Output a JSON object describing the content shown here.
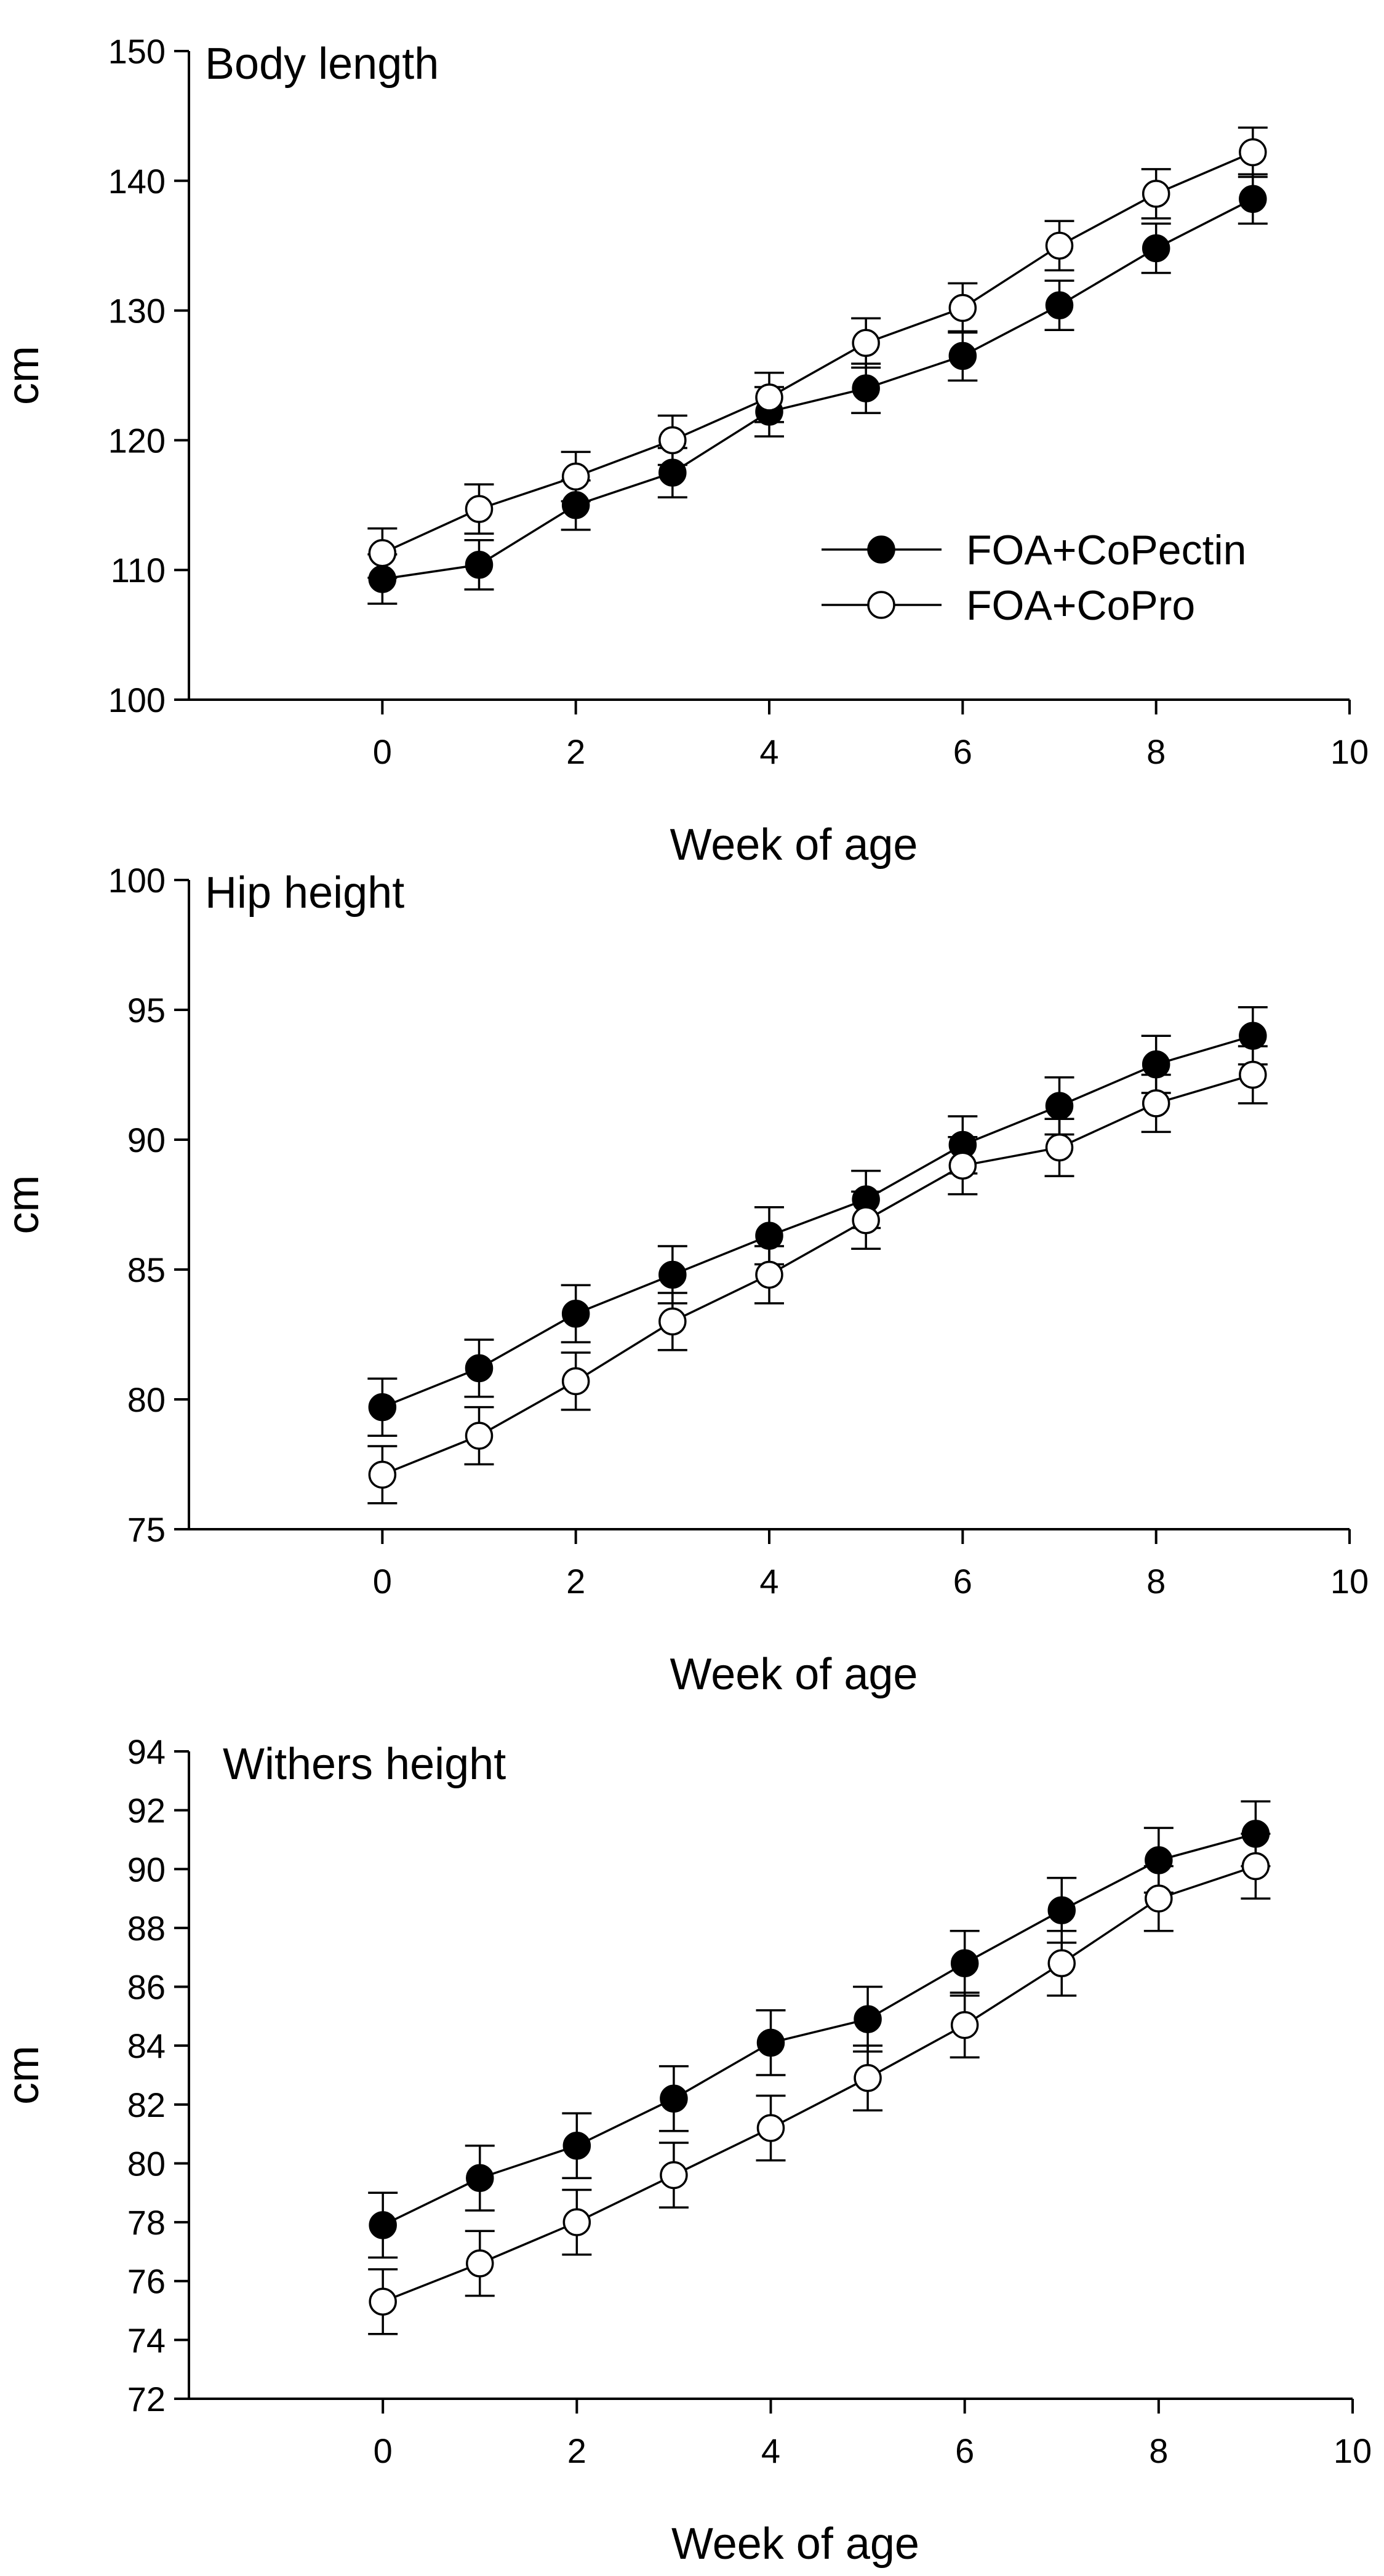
{
  "legend": {
    "items": [
      {
        "label": "FOA+CoPectin",
        "marker": "filled-circle",
        "color": "#000000"
      },
      {
        "label": "FOA+CoPro",
        "marker": "open-circle",
        "color": "#000000"
      }
    ],
    "placement": "in first panel, lower-right"
  },
  "chart_data": [
    {
      "type": "line",
      "title": "Body length",
      "xlabel": "Week of age",
      "ylabel": "cm",
      "xlim": [
        -2,
        10
      ],
      "ylim": [
        100,
        150
      ],
      "xticks": [
        0,
        2,
        4,
        6,
        8,
        10
      ],
      "yticks": [
        100,
        110,
        120,
        130,
        140,
        150
      ],
      "x": [
        0,
        1,
        2,
        3,
        4,
        5,
        6,
        7,
        8,
        9
      ],
      "grid": false,
      "series": [
        {
          "name": "FOA+CoPectin",
          "marker": "filled",
          "values": [
            109.3,
            110.4,
            115.0,
            117.5,
            122.2,
            124.0,
            126.5,
            130.4,
            134.8,
            138.6
          ],
          "error": [
            1.9,
            1.9,
            1.9,
            1.9,
            1.9,
            1.9,
            1.9,
            1.9,
            1.9,
            1.9
          ]
        },
        {
          "name": "FOA+CoPro",
          "marker": "open",
          "values": [
            111.3,
            114.7,
            117.2,
            120.0,
            123.3,
            127.5,
            130.2,
            135.0,
            139.0,
            142.2
          ],
          "error": [
            1.9,
            1.9,
            1.9,
            1.9,
            1.9,
            1.9,
            1.9,
            1.9,
            1.9,
            1.9
          ]
        }
      ]
    },
    {
      "type": "line",
      "title": "Hip height",
      "xlabel": "Week of age",
      "ylabel": "cm",
      "xlim": [
        -2,
        10
      ],
      "ylim": [
        75,
        100
      ],
      "xticks": [
        0,
        2,
        4,
        6,
        8,
        10
      ],
      "yticks": [
        75,
        80,
        85,
        90,
        95,
        100
      ],
      "x": [
        0,
        1,
        2,
        3,
        4,
        5,
        6,
        7,
        8,
        9
      ],
      "grid": false,
      "series": [
        {
          "name": "FOA+CoPectin",
          "marker": "filled",
          "values": [
            79.7,
            81.2,
            83.3,
            84.8,
            86.3,
            87.7,
            89.8,
            91.3,
            92.9,
            94.0
          ],
          "error": [
            1.1,
            1.1,
            1.1,
            1.1,
            1.1,
            1.1,
            1.1,
            1.1,
            1.1,
            1.1
          ]
        },
        {
          "name": "FOA+CoPro",
          "marker": "open",
          "values": [
            77.1,
            78.6,
            80.7,
            83.0,
            84.8,
            86.9,
            89.0,
            89.7,
            91.4,
            92.5
          ],
          "error": [
            1.1,
            1.1,
            1.1,
            1.1,
            1.1,
            1.1,
            1.1,
            1.1,
            1.1,
            1.1
          ]
        }
      ]
    },
    {
      "type": "line",
      "title": "Withers height",
      "xlabel": "Week of age",
      "ylabel": "cm",
      "xlim": [
        -2,
        10
      ],
      "ylim": [
        72,
        94
      ],
      "xticks": [
        0,
        2,
        4,
        6,
        8,
        10
      ],
      "yticks": [
        72,
        74,
        76,
        78,
        80,
        82,
        84,
        86,
        88,
        90,
        92,
        94
      ],
      "x": [
        0,
        1,
        2,
        3,
        4,
        5,
        6,
        7,
        8,
        9
      ],
      "grid": false,
      "series": [
        {
          "name": "FOA+CoPectin",
          "marker": "filled",
          "values": [
            77.9,
            79.5,
            80.6,
            82.2,
            84.1,
            84.9,
            86.8,
            88.6,
            90.3,
            91.2
          ],
          "error": [
            1.1,
            1.1,
            1.1,
            1.1,
            1.1,
            1.1,
            1.1,
            1.1,
            1.1,
            1.1
          ]
        },
        {
          "name": "FOA+CoPro",
          "marker": "open",
          "values": [
            75.3,
            76.6,
            78.0,
            79.6,
            81.2,
            82.9,
            84.7,
            86.8,
            89.0,
            90.1
          ],
          "error": [
            1.1,
            1.1,
            1.1,
            1.1,
            1.1,
            1.1,
            1.1,
            1.1,
            1.1,
            1.1
          ]
        }
      ]
    }
  ]
}
